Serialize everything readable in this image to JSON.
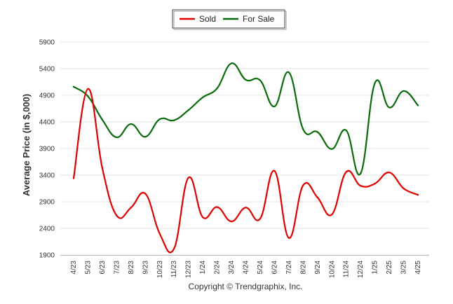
{
  "chart_data": {
    "type": "line",
    "title": "",
    "xlabel": "",
    "ylabel": "Average Price (in $,000)",
    "categories": [
      "4/23",
      "5/23",
      "6/23",
      "7/23",
      "8/23",
      "9/23",
      "10/23",
      "11/23",
      "12/23",
      "1/24",
      "2/24",
      "3/24",
      "4/24",
      "5/24",
      "6/24",
      "7/24",
      "8/24",
      "9/24",
      "10/24",
      "11/24",
      "12/24",
      "1/25",
      "2/25",
      "3/25",
      "4/25"
    ],
    "y_ticks": [
      1900,
      2400,
      2900,
      3400,
      3900,
      4400,
      4900,
      5400,
      5900
    ],
    "ylim": [
      1900,
      5900
    ],
    "grid": "horizontal",
    "legend": {
      "position": "top-center",
      "entries": [
        "Sold",
        "For Sale"
      ]
    },
    "series": [
      {
        "name": "Sold",
        "color": "#e00000",
        "values": [
          3340,
          5020,
          3530,
          2640,
          2790,
          3050,
          2300,
          2020,
          3350,
          2610,
          2800,
          2530,
          2790,
          2580,
          3480,
          2220,
          3210,
          2980,
          2660,
          3460,
          3200,
          3240,
          3450,
          3150,
          3030
        ]
      },
      {
        "name": "For Sale",
        "color": "#0a6b0a",
        "values": [
          5060,
          4880,
          4440,
          4110,
          4360,
          4120,
          4450,
          4430,
          4620,
          4860,
          5030,
          5500,
          5190,
          5180,
          4690,
          5330,
          4260,
          4210,
          3890,
          4240,
          3430,
          5130,
          4670,
          4980,
          4710
        ]
      }
    ],
    "annotations": [
      "Copyright © Trendgraphix, Inc."
    ]
  }
}
